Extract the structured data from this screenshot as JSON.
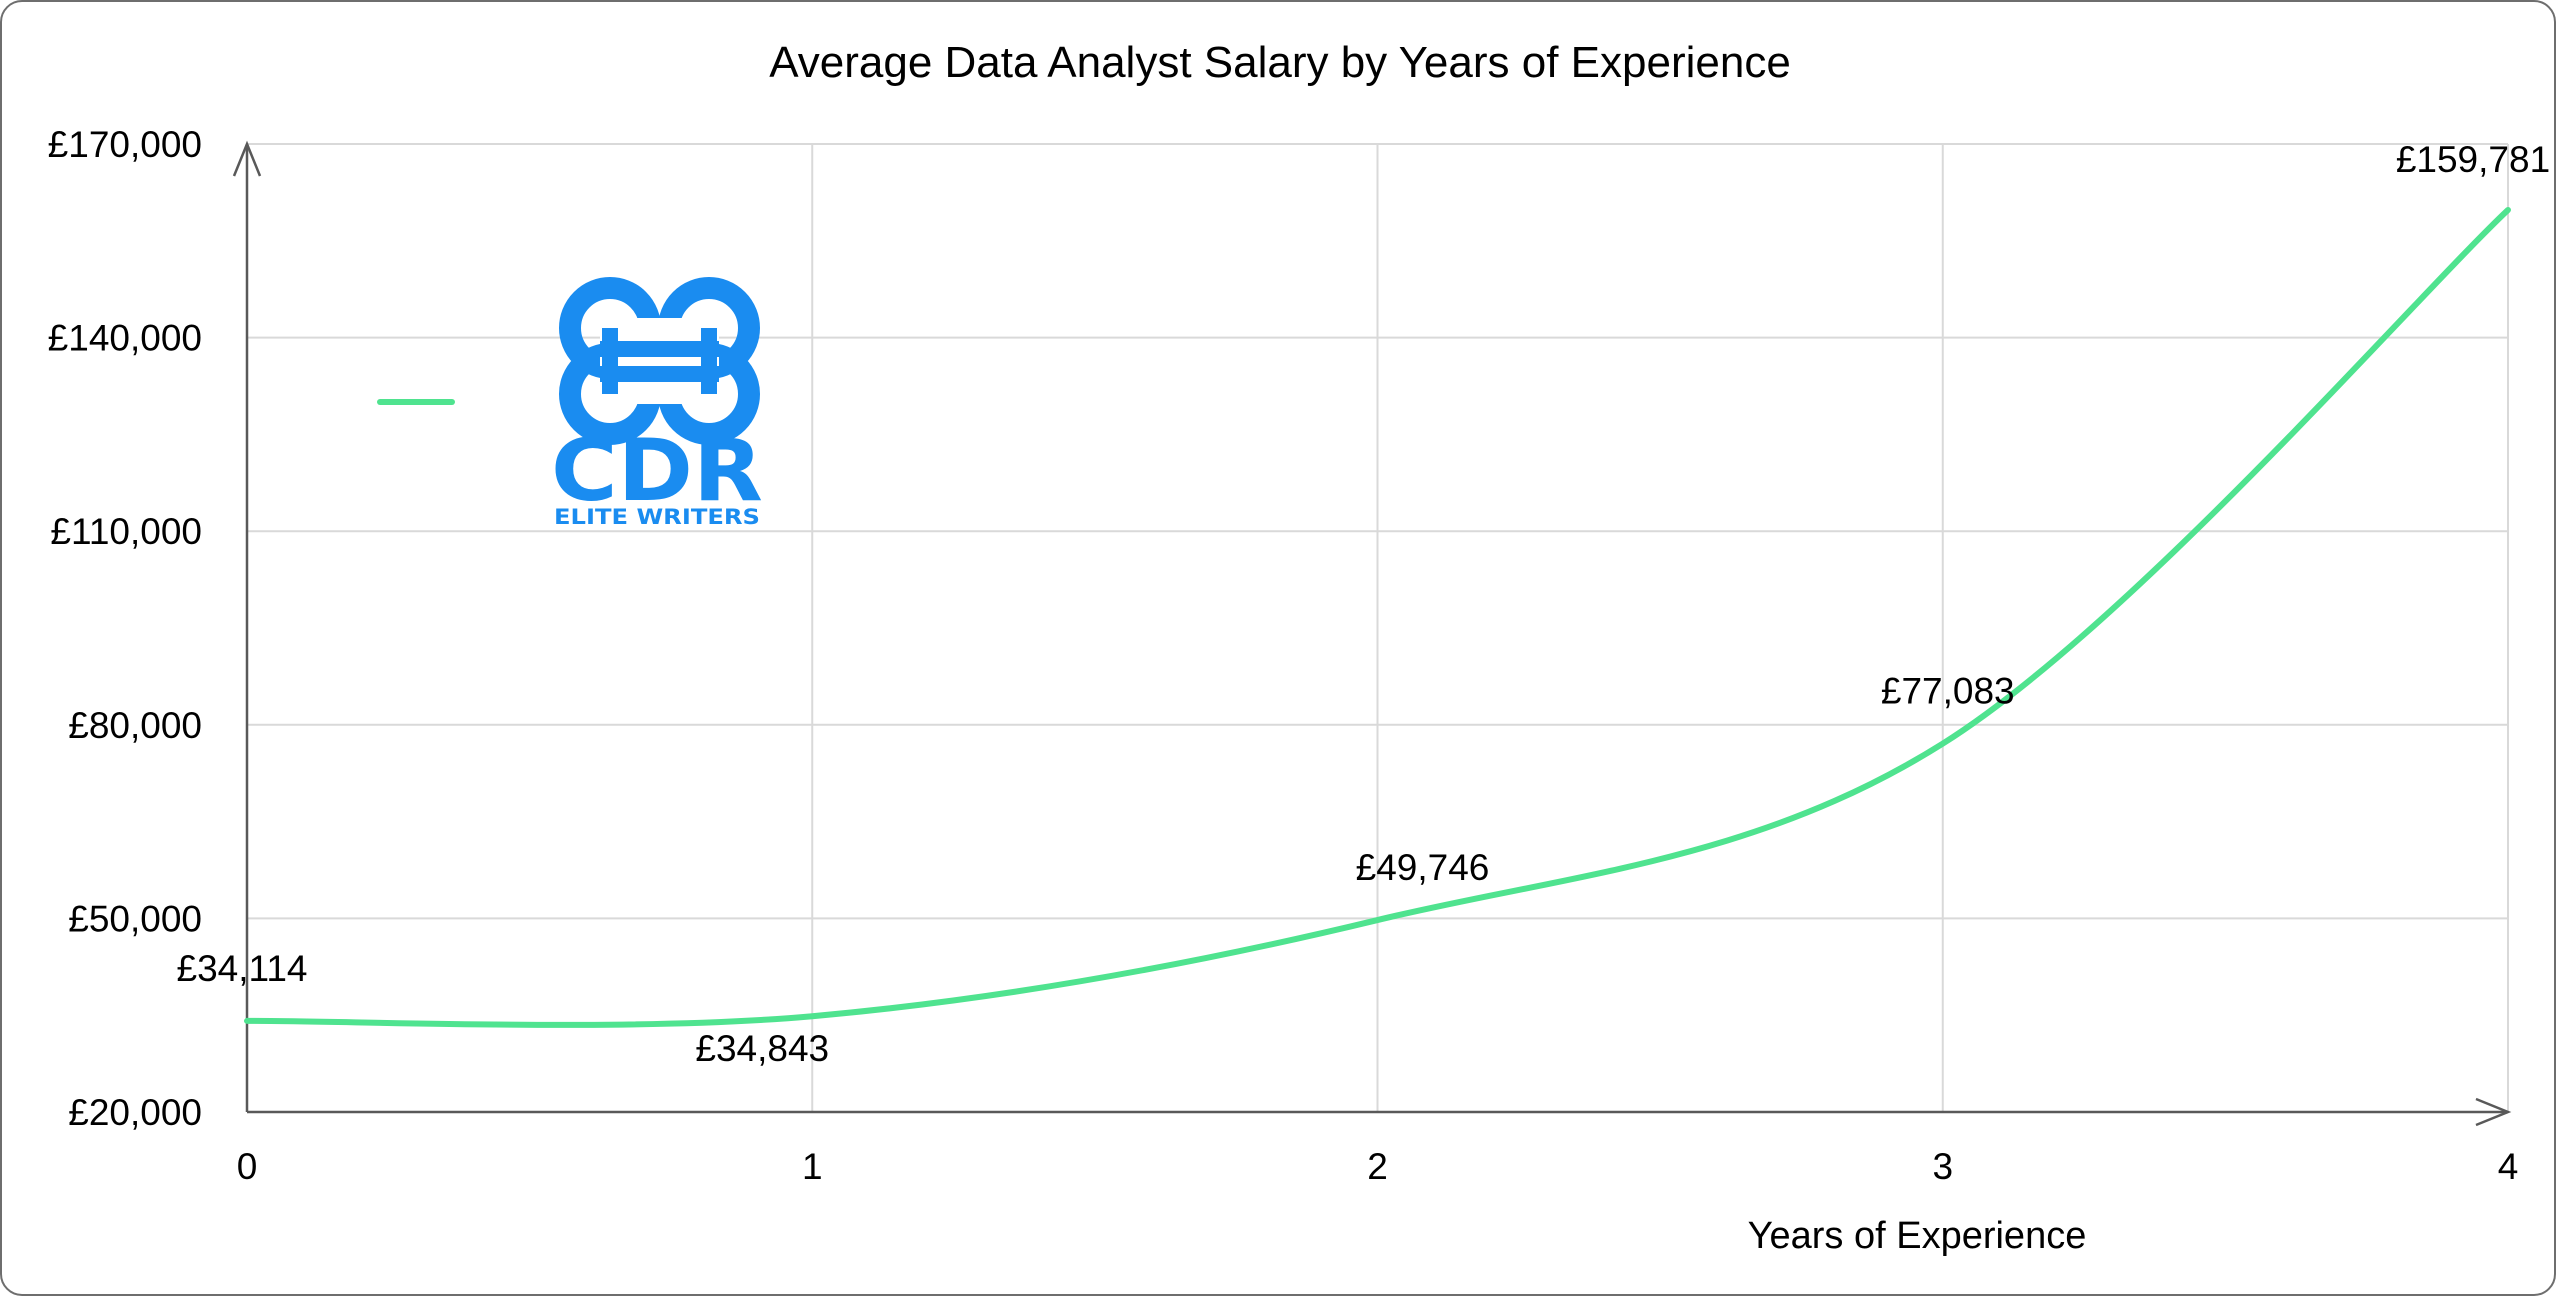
{
  "chart_data": {
    "type": "line",
    "title": "Average Data Analyst Salary by Years of Experience",
    "xlabel": "Years of Experience",
    "ylabel": "",
    "x": [
      0,
      1,
      2,
      3,
      4
    ],
    "x_ticks": [
      "0",
      "1",
      "2",
      "3",
      "4"
    ],
    "ylim": [
      20000,
      170000
    ],
    "y_ticks": [
      "£20,000",
      "£50,000",
      "£80,000",
      "£110,000",
      "£140,000",
      "£170,000"
    ],
    "y_tick_values": [
      20000,
      50000,
      80000,
      110000,
      140000,
      170000
    ],
    "grid": true,
    "smooth": true,
    "legend": "top-left",
    "series": [
      {
        "name": "",
        "color": "#4fe38f",
        "values": [
          34114,
          34843,
          49746,
          77083,
          159781
        ],
        "labels": [
          "£34,114",
          "£34,843",
          "£49,746",
          "£77,083",
          "£159,781"
        ]
      }
    ]
  },
  "logo": {
    "mark": "CDR",
    "tagline": "ELITE WRITERS",
    "color": "#1a8cf0"
  }
}
